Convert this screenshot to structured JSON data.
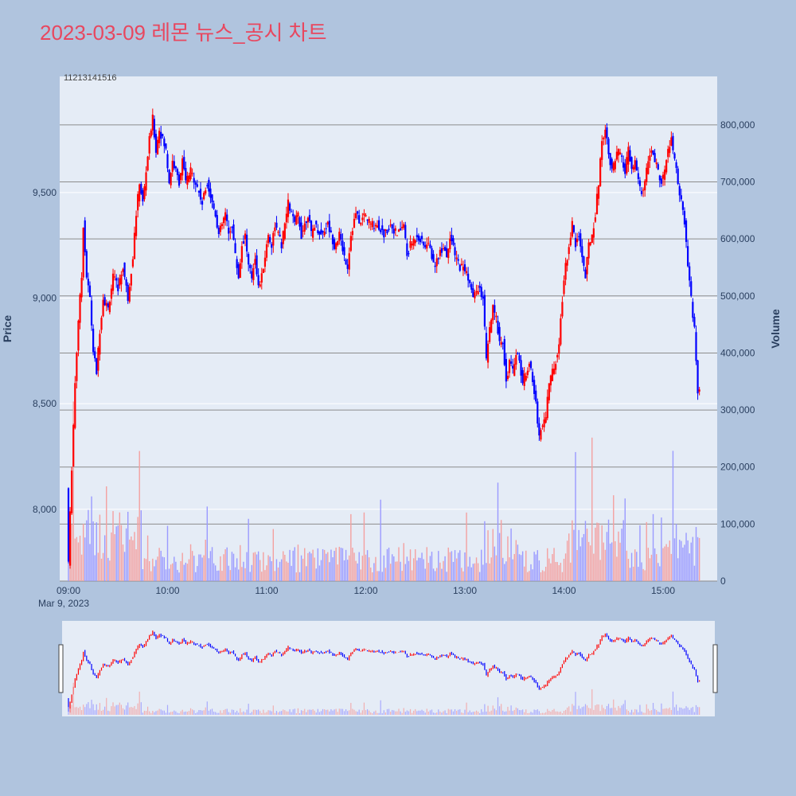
{
  "chart_data": {
    "type": "candlestick",
    "title": "2023-03-09 레몬 뉴스_공시 차트",
    "ylabel": "Price",
    "y2label": "Volume",
    "date_label": "Mar 9, 2023",
    "x_ticks": [
      "09:00",
      "10:00",
      "11:00",
      "12:00",
      "13:00",
      "14:00",
      "15:00"
    ],
    "x_range": [
      "09:00",
      "15:30"
    ],
    "price_ticks": [
      8000,
      8500,
      9000,
      9500
    ],
    "price_ylim": [
      7660,
      10050
    ],
    "volume_ticks": [
      "0",
      "100,000",
      "200,000",
      "300,000",
      "400,000",
      "500,000",
      "600,000",
      "700,000",
      "800,000"
    ],
    "volume_ylim": [
      0,
      885000
    ],
    "corner_annotation": "11213141516",
    "colors": {
      "up": "#ff0000",
      "down": "#0000ff",
      "vol_up": "#f4a0a0",
      "vol_down": "#9a9aff",
      "title": "#e8475f",
      "bg": "#b0c4de",
      "plot_bg": "#e5ecf6"
    },
    "price_path": [
      [
        "09:00",
        8100
      ],
      [
        "09:01",
        7750
      ],
      [
        "09:03",
        8200
      ],
      [
        "09:05",
        8600
      ],
      [
        "09:07",
        8900
      ],
      [
        "09:09",
        9100
      ],
      [
        "09:10",
        9350
      ],
      [
        "09:12",
        9100
      ],
      [
        "09:14",
        9000
      ],
      [
        "09:16",
        8750
      ],
      [
        "09:18",
        8650
      ],
      [
        "09:20",
        8850
      ],
      [
        "09:22",
        9000
      ],
      [
        "09:25",
        8950
      ],
      [
        "09:28",
        9100
      ],
      [
        "09:31",
        9050
      ],
      [
        "09:34",
        9150
      ],
      [
        "09:37",
        9000
      ],
      [
        "09:40",
        9200
      ],
      [
        "09:42",
        9400
      ],
      [
        "09:44",
        9550
      ],
      [
        "09:46",
        9450
      ],
      [
        "09:48",
        9600
      ],
      [
        "09:50",
        9750
      ],
      [
        "09:52",
        9850
      ],
      [
        "09:54",
        9700
      ],
      [
        "09:56",
        9800
      ],
      [
        "09:58",
        9750
      ],
      [
        "10:00",
        9700
      ],
      [
        "10:02",
        9550
      ],
      [
        "10:04",
        9650
      ],
      [
        "10:06",
        9600
      ],
      [
        "10:08",
        9550
      ],
      [
        "10:10",
        9650
      ],
      [
        "10:12",
        9550
      ],
      [
        "10:15",
        9600
      ],
      [
        "10:18",
        9550
      ],
      [
        "10:20",
        9500
      ],
      [
        "10:22",
        9450
      ],
      [
        "10:25",
        9550
      ],
      [
        "10:28",
        9450
      ],
      [
        "10:30",
        9400
      ],
      [
        "10:32",
        9300
      ],
      [
        "10:34",
        9350
      ],
      [
        "10:36",
        9400
      ],
      [
        "10:38",
        9300
      ],
      [
        "10:40",
        9350
      ],
      [
        "10:42",
        9200
      ],
      [
        "10:44",
        9100
      ],
      [
        "10:46",
        9250
      ],
      [
        "10:48",
        9300
      ],
      [
        "10:50",
        9150
      ],
      [
        "10:52",
        9100
      ],
      [
        "10:54",
        9200
      ],
      [
        "10:56",
        9050
      ],
      [
        "10:58",
        9100
      ],
      [
        "11:00",
        9200
      ],
      [
        "11:02",
        9300
      ],
      [
        "11:04",
        9250
      ],
      [
        "11:06",
        9350
      ],
      [
        "11:08",
        9300
      ],
      [
        "11:10",
        9250
      ],
      [
        "11:12",
        9350
      ],
      [
        "11:14",
        9450
      ],
      [
        "11:16",
        9400
      ],
      [
        "11:18",
        9350
      ],
      [
        "11:20",
        9400
      ],
      [
        "11:22",
        9300
      ],
      [
        "11:24",
        9350
      ],
      [
        "11:26",
        9400
      ],
      [
        "11:28",
        9300
      ],
      [
        "11:30",
        9350
      ],
      [
        "11:34",
        9300
      ],
      [
        "11:38",
        9350
      ],
      [
        "11:40",
        9300
      ],
      [
        "11:42",
        9250
      ],
      [
        "11:45",
        9300
      ],
      [
        "11:48",
        9200
      ],
      [
        "11:50",
        9150
      ],
      [
        "11:52",
        9300
      ],
      [
        "11:55",
        9400
      ],
      [
        "11:58",
        9350
      ],
      [
        "12:00",
        9400
      ],
      [
        "12:04",
        9350
      ],
      [
        "12:08",
        9350
      ],
      [
        "12:12",
        9300
      ],
      [
        "12:16",
        9350
      ],
      [
        "12:20",
        9300
      ],
      [
        "12:24",
        9350
      ],
      [
        "12:26",
        9200
      ],
      [
        "12:28",
        9250
      ],
      [
        "12:32",
        9300
      ],
      [
        "12:36",
        9250
      ],
      [
        "12:40",
        9250
      ],
      [
        "12:42",
        9150
      ],
      [
        "12:45",
        9200
      ],
      [
        "12:48",
        9250
      ],
      [
        "12:50",
        9200
      ],
      [
        "12:52",
        9300
      ],
      [
        "12:55",
        9200
      ],
      [
        "12:58",
        9150
      ],
      [
        "13:00",
        9150
      ],
      [
        "13:03",
        9100
      ],
      [
        "13:06",
        9000
      ],
      [
        "13:09",
        9050
      ],
      [
        "13:12",
        9000
      ],
      [
        "13:14",
        8700
      ],
      [
        "13:16",
        8850
      ],
      [
        "13:18",
        8950
      ],
      [
        "13:20",
        8900
      ],
      [
        "13:22",
        8800
      ],
      [
        "13:24",
        8800
      ],
      [
        "13:26",
        8600
      ],
      [
        "13:28",
        8700
      ],
      [
        "13:30",
        8650
      ],
      [
        "13:32",
        8750
      ],
      [
        "13:34",
        8700
      ],
      [
        "13:36",
        8600
      ],
      [
        "13:38",
        8650
      ],
      [
        "13:40",
        8700
      ],
      [
        "13:42",
        8600
      ],
      [
        "13:44",
        8500
      ],
      [
        "13:46",
        8350
      ],
      [
        "13:48",
        8400
      ],
      [
        "13:50",
        8450
      ],
      [
        "13:52",
        8600
      ],
      [
        "13:54",
        8650
      ],
      [
        "13:56",
        8700
      ],
      [
        "13:58",
        8800
      ],
      [
        "14:00",
        9000
      ],
      [
        "14:02",
        9150
      ],
      [
        "14:04",
        9250
      ],
      [
        "14:06",
        9350
      ],
      [
        "14:08",
        9250
      ],
      [
        "14:10",
        9300
      ],
      [
        "14:12",
        9200
      ],
      [
        "14:14",
        9100
      ],
      [
        "14:16",
        9250
      ],
      [
        "14:18",
        9300
      ],
      [
        "14:20",
        9400
      ],
      [
        "14:22",
        9550
      ],
      [
        "14:24",
        9750
      ],
      [
        "14:26",
        9800
      ],
      [
        "14:28",
        9700
      ],
      [
        "14:30",
        9600
      ],
      [
        "14:32",
        9650
      ],
      [
        "14:34",
        9700
      ],
      [
        "14:36",
        9650
      ],
      [
        "14:38",
        9600
      ],
      [
        "14:40",
        9700
      ],
      [
        "14:42",
        9600
      ],
      [
        "14:44",
        9650
      ],
      [
        "14:46",
        9550
      ],
      [
        "14:48",
        9500
      ],
      [
        "14:50",
        9550
      ],
      [
        "14:52",
        9650
      ],
      [
        "14:54",
        9700
      ],
      [
        "14:56",
        9650
      ],
      [
        "14:58",
        9600
      ],
      [
        "15:00",
        9550
      ],
      [
        "15:02",
        9600
      ],
      [
        "15:04",
        9700
      ],
      [
        "15:06",
        9750
      ],
      [
        "15:08",
        9650
      ],
      [
        "15:10",
        9550
      ],
      [
        "15:12",
        9450
      ],
      [
        "15:14",
        9350
      ],
      [
        "15:16",
        9150
      ],
      [
        "15:18",
        9000
      ],
      [
        "15:20",
        8850
      ],
      [
        "15:22",
        8550
      ]
    ]
  }
}
